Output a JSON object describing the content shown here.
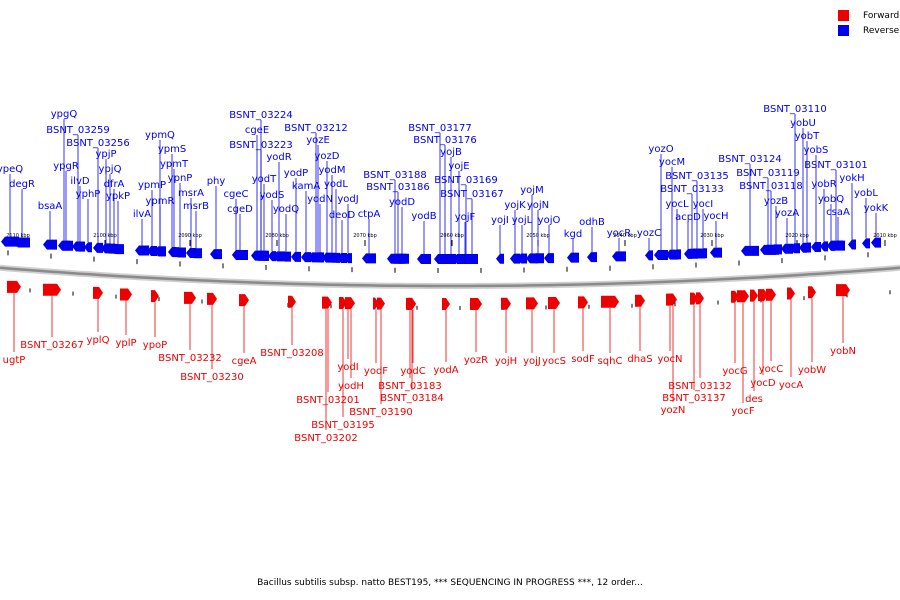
{
  "legend": {
    "forward_label": "Forward",
    "reverse_label": "Reverse",
    "forward_color": "#ee0000",
    "reverse_color": "#0000ee"
  },
  "caption": "Bacillus subtilis subsp. natto BEST195, *** SEQUENCING IN PROGRESS ***, 12 order...",
  "scale_labels": [
    "2110 kbp",
    "2100 kbp",
    "2090 kbp",
    "2080 kbp",
    "2070 kbp",
    "2060 kbp",
    "2050 kbp",
    "2040 kbp",
    "2030 kbp",
    "2020 kbp",
    "2010 kbp"
  ],
  "reverse_genes": [
    "ypeQ",
    "degR",
    "bsaA",
    "ypgQ",
    "BSNT_03259",
    "ypgR",
    "BSNT_03256",
    "ilvD",
    "yphP",
    "ypjP",
    "ypjQ",
    "dfrA",
    "ypkP",
    "ilvA",
    "ypmP",
    "ypmQ",
    "ypmR",
    "ypmS",
    "ypmT",
    "ypnP",
    "msrA",
    "msrB",
    "phy",
    "cgeC",
    "cgeD",
    "cgeE",
    "BSNT_03224",
    "BSNT_03223",
    "yodT",
    "yodR",
    "yodS",
    "yodQ",
    "yodP",
    "BSNT_03212",
    "yozE",
    "kamA",
    "yozD",
    "yodN",
    "yodM",
    "yodL",
    "deoD",
    "yodJ",
    "ctpA",
    "BSNT_03188",
    "BSNT_03186",
    "yodD",
    "yodB",
    "BSNT_03177",
    "BSNT_03176",
    "yojB",
    "yojE",
    "BSNT_03169",
    "BSNT_03167",
    "yojF",
    "yojI",
    "yojK",
    "yojL",
    "yojM",
    "yojN",
    "yojO",
    "kgd",
    "odhB",
    "yocR",
    "yozC",
    "yozO",
    "yocM",
    "BSNT_03135",
    "BSNT_03133",
    "yocL",
    "acpD",
    "yocI",
    "yocH",
    "BSNT_03124",
    "BSNT_03119",
    "BSNT_03118",
    "yozB",
    "yozA",
    "BSNT_03110",
    "yobU",
    "yobT",
    "yobS",
    "BSNT_03101",
    "yobR",
    "yobQ",
    "csaA",
    "yokH",
    "yobL",
    "yokK"
  ],
  "forward_genes": [
    "ugtP",
    "BSNT_03267",
    "yplQ",
    "yplP",
    "ypoP",
    "BSNT_03232",
    "BSNT_03230",
    "cgeA",
    "BSNT_03208",
    "BSNT_03201",
    "BSNT_03202",
    "yodI",
    "yodH",
    "BSNT_03195",
    "BSNT_03190",
    "yodF",
    "BSNT_03183",
    "BSNT_03184",
    "yodC",
    "yodA",
    "yozR",
    "yojH",
    "yojJ",
    "yocS",
    "sodF",
    "sqhC",
    "dhaS",
    "yocN",
    "BSNT_03132",
    "BSNT_03137",
    "yozN",
    "yocG",
    "des",
    "yocF",
    "yocD",
    "yocC",
    "yocA",
    "yobW",
    "yobN"
  ]
}
